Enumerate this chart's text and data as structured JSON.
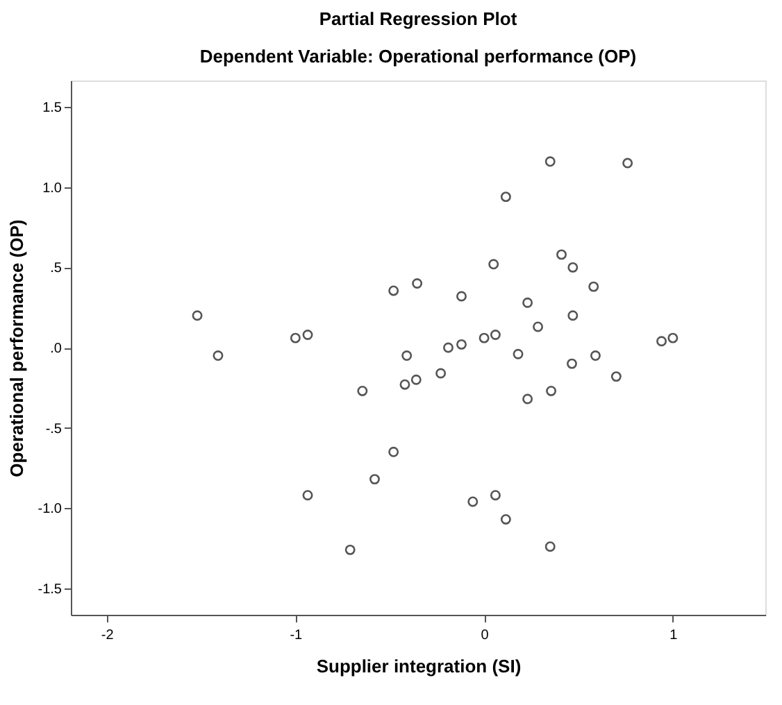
{
  "chart_data": {
    "type": "scatter",
    "title": "Partial Regression Plot",
    "subtitle": "Dependent Variable: Operational performance (OP)",
    "xlabel": "Supplier integration (SI)",
    "ylabel": "Operational performance (OP)",
    "x": [
      -1.52,
      -1.41,
      -1.0,
      -0.935,
      -0.48,
      0.35,
      0.76,
      0.115,
      0.41,
      0.47,
      0.05,
      -0.355,
      0.58,
      -0.12,
      0.23,
      0.47,
      0.285,
      0.94,
      1.0,
      0.0,
      0.06,
      -0.19,
      -0.12,
      -0.41,
      0.18,
      0.59,
      0.465,
      -0.23,
      -0.42,
      -0.36,
      0.7,
      0.355,
      0.23,
      -0.48,
      -0.58,
      -0.06,
      0.06,
      0.115,
      0.35,
      -0.645,
      -0.935,
      -0.71
    ],
    "series": [
      {
        "color": "#555555",
        "values": [
          0.2,
          -0.05,
          0.06,
          0.08,
          0.355,
          1.16,
          1.15,
          0.94,
          0.58,
          0.5,
          0.52,
          0.4,
          0.38,
          0.32,
          0.28,
          0.2,
          0.13,
          0.04,
          0.06,
          0.06,
          0.08,
          0.0,
          0.02,
          -0.05,
          -0.04,
          -0.05,
          -0.1,
          -0.16,
          -0.23,
          -0.2,
          -0.18,
          -0.27,
          -0.32,
          -0.65,
          -0.82,
          -0.96,
          -0.92,
          -1.07,
          -1.24,
          -0.27,
          -0.92,
          -1.26
        ]
      }
    ],
    "xlim": [
      -2.19,
      1.49
    ],
    "ylim": [
      -1.665,
      1.665
    ],
    "xticks": [
      -2,
      -1,
      0,
      1
    ],
    "yticks": [
      1.5,
      {
        "value": 1,
        "label": "1.0"
      },
      {
        "value": 0.5,
        "label": ".5"
      },
      {
        "value": 0,
        "label": ".0"
      },
      {
        "value": -0.5,
        "label": "-.5"
      },
      {
        "value": -1,
        "label": "-1.0"
      },
      -1.5
    ],
    "grid": false,
    "marker": "circle"
  }
}
